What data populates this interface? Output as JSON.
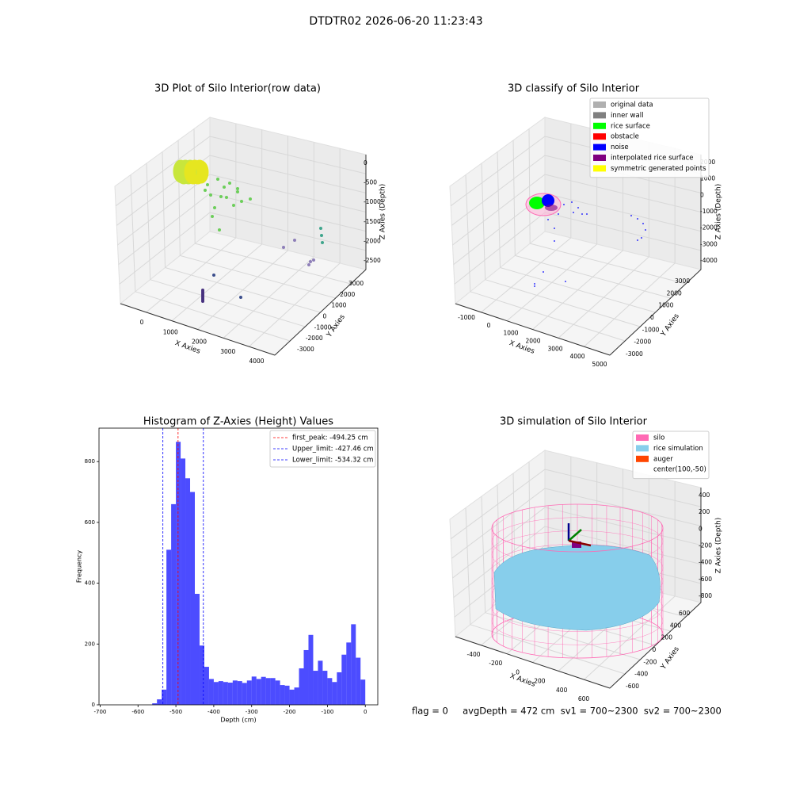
{
  "title": "DTDTR02 2026-06-20 11:23:43",
  "footer": "flag = 0     avgDepth = 472 cm  sv1 = 700~2300  sv2 = 700~2300",
  "chart_data": [
    {
      "type": "scatter3d",
      "title": "3D Plot of Silo Interior(row data)",
      "xlabel": "X Axies",
      "ylabel": "Y Axies",
      "zlabel": "Z Axies (Depth)",
      "xticks": [
        0,
        1000,
        2000,
        3000,
        4000
      ],
      "yticks": [
        -3000,
        -2000,
        -1000,
        0,
        1000,
        2000,
        3000
      ],
      "zticks": [
        0,
        -500,
        -1000,
        -1500,
        -2000,
        -2500
      ]
    },
    {
      "type": "scatter3d",
      "title": "3D classify of Silo Interior",
      "xlabel": "X Axies",
      "ylabel": "Y Axies",
      "zlabel": "Z Axies (Depth)",
      "xticks": [
        -1000,
        0,
        1000,
        2000,
        3000,
        4000,
        5000
      ],
      "yticks": [
        -3000,
        -2000,
        -1000,
        0,
        1000,
        2000,
        3000
      ],
      "zticks": [
        2000,
        1000,
        0,
        -1000,
        -2000,
        -3000,
        -4000
      ],
      "legend": "upper right",
      "series": [
        {
          "name": "original data",
          "color": "#b0b0b0"
        },
        {
          "name": "inner wall",
          "color": "#808080"
        },
        {
          "name": "rice surface",
          "color": "#00ff00"
        },
        {
          "name": "obstacle",
          "color": "#ff0000"
        },
        {
          "name": "noise",
          "color": "#0000ff"
        },
        {
          "name": "interpolated rice surface",
          "color": "#800080"
        },
        {
          "name": "symmetric generated points",
          "color": "#ffff00"
        }
      ]
    },
    {
      "type": "histogram",
      "title": "Histogram of Z-Axies (Height) Values",
      "xlabel": "Depth (cm)",
      "ylabel": "Frequency",
      "color": "#0000ff",
      "bins": [
        -562.5,
        -550,
        -537.5,
        -525,
        -512.5,
        -500,
        -487.5,
        -475,
        -462.5,
        -450,
        -437.5,
        -425,
        -412.5,
        -400,
        -387.5,
        -375,
        -362.5,
        -350,
        -337.5,
        -325,
        -312.5,
        -300,
        -287.5,
        -275,
        -262.5,
        -250,
        -237.5,
        -225,
        -212.5,
        -200,
        -187.5,
        -175,
        -162.5,
        -150,
        -137.5,
        -125,
        -112.5,
        -100,
        -87.5,
        -75,
        -62.5,
        -50,
        -37.5,
        -25,
        -12.5,
        0
      ],
      "values": [
        5,
        18,
        50,
        510,
        660,
        865,
        810,
        745,
        700,
        365,
        195,
        125,
        85,
        75,
        78,
        75,
        73,
        80,
        78,
        72,
        80,
        93,
        85,
        92,
        88,
        88,
        80,
        65,
        63,
        50,
        57,
        120,
        180,
        230,
        112,
        145,
        112,
        88,
        75,
        107,
        165,
        205,
        265,
        155,
        83
      ],
      "xlim": [
        -703,
        33
      ],
      "ylim": [
        0,
        910
      ],
      "xticks": [
        -700,
        -600,
        -500,
        -400,
        -300,
        -200,
        -100,
        0
      ],
      "yticks": [
        0,
        200,
        400,
        600,
        800
      ],
      "legend": "upper right",
      "vlines": [
        {
          "label": "first_peak: -494.25 cm",
          "value": -494.25,
          "color": "#ff0000"
        },
        {
          "label": "Upper_limit: -427.46 cm",
          "value": -427.46,
          "color": "#0000ff"
        },
        {
          "label": "Lower_limit: -534.32 cm",
          "value": -534.32,
          "color": "#0000ff"
        }
      ]
    },
    {
      "type": "surface3d",
      "title": "3D simulation of Silo Interior",
      "xlabel": "X Axies",
      "ylabel": "Y Axies",
      "zlabel": "Z Axies (Depth)",
      "xticks": [
        -400,
        -200,
        0,
        200,
        400,
        600
      ],
      "yticks": [
        -600,
        -400,
        -200,
        0,
        200,
        400,
        600
      ],
      "zticks": [
        400,
        200,
        0,
        -200,
        -400,
        -600,
        -800
      ],
      "legend": "upper right",
      "series": [
        {
          "name": "silo",
          "color": "#ff69b4"
        },
        {
          "name": "rice simulation",
          "color": "#87ceeb"
        },
        {
          "name": "auger",
          "color": "#ff4500"
        },
        {
          "name": "center(100,-50)",
          "color": null
        }
      ]
    }
  ]
}
